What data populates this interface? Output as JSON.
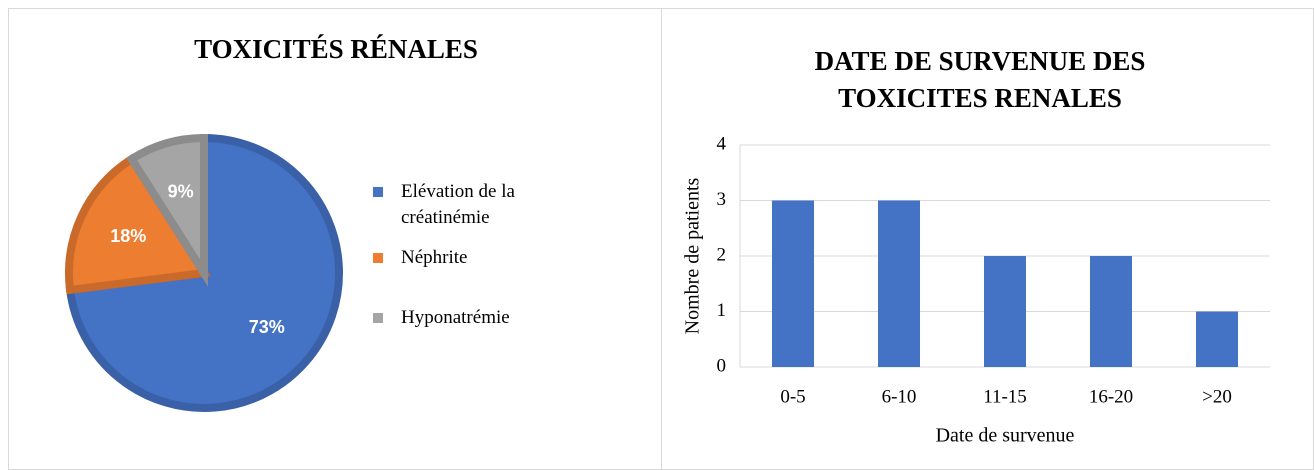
{
  "chart_data": [
    {
      "type": "pie",
      "title": "TOXICITÉS RÉNALES",
      "categories": [
        "Elévation de la créatinémie",
        "Néphrite",
        "Hyponatrémie"
      ],
      "values": [
        73,
        18,
        9
      ],
      "value_labels": [
        "73%",
        "18%",
        "9%"
      ],
      "colors": [
        "#4472c4",
        "#ed7d31",
        "#a5a5a5"
      ],
      "legend": "right"
    },
    {
      "type": "bar",
      "title": "DATE DE SURVENUE DES TOXICITES RENALES",
      "categories": [
        "0-5",
        "6-10",
        "11-15",
        "16-20",
        ">20"
      ],
      "values": [
        3,
        3,
        2,
        2,
        1
      ],
      "color": "#4472c4",
      "xlabel": "Date de survenue",
      "ylabel": "Nombre de patients",
      "ylim": [
        0,
        4
      ],
      "yticks": [
        0,
        1,
        2,
        3,
        4
      ],
      "grid": true
    }
  ]
}
